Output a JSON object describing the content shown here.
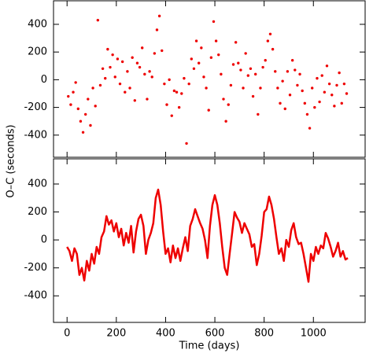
{
  "chart_data": [
    {
      "type": "scatter",
      "color": "#ee0000",
      "ylabel": "O–C (seconds)",
      "xlim": [
        -55,
        1210
      ],
      "ylim": [
        -560,
        570
      ],
      "xticks": [
        0,
        200,
        400,
        600,
        800,
        1000
      ],
      "yticks": [
        -400,
        -200,
        0,
        200,
        400
      ],
      "x": [
        5,
        15,
        25,
        35,
        45,
        55,
        65,
        75,
        85,
        95,
        105,
        115,
        125,
        135,
        145,
        155,
        165,
        175,
        185,
        195,
        205,
        215,
        225,
        235,
        245,
        255,
        265,
        275,
        285,
        295,
        305,
        315,
        325,
        335,
        345,
        355,
        365,
        375,
        385,
        395,
        405,
        415,
        425,
        435,
        445,
        455,
        465,
        475,
        485,
        495,
        505,
        515,
        525,
        535,
        545,
        555,
        565,
        575,
        585,
        595,
        605,
        615,
        625,
        635,
        645,
        655,
        665,
        675,
        685,
        695,
        705,
        715,
        725,
        735,
        745,
        755,
        765,
        775,
        785,
        795,
        805,
        815,
        825,
        835,
        845,
        855,
        865,
        875,
        885,
        895,
        905,
        915,
        925,
        935,
        945,
        955,
        965,
        975,
        985,
        995,
        1005,
        1015,
        1025,
        1035,
        1045,
        1055,
        1065,
        1075,
        1085,
        1095,
        1105,
        1115,
        1125,
        1135
      ],
      "values": [
        -120,
        -180,
        -90,
        -20,
        -210,
        -300,
        -380,
        -250,
        -140,
        -330,
        -60,
        -190,
        430,
        -40,
        80,
        10,
        220,
        90,
        180,
        20,
        150,
        -30,
        130,
        -90,
        60,
        -60,
        160,
        -150,
        120,
        90,
        230,
        40,
        -140,
        60,
        20,
        190,
        360,
        460,
        210,
        -30,
        -180,
        0,
        -260,
        -80,
        -90,
        -200,
        -100,
        10,
        -460,
        -30,
        150,
        80,
        280,
        120,
        230,
        20,
        -60,
        -220,
        160,
        420,
        280,
        180,
        40,
        -140,
        -300,
        -180,
        -40,
        110,
        270,
        120,
        70,
        -60,
        190,
        30,
        80,
        -120,
        40,
        -250,
        -60,
        90,
        140,
        280,
        330,
        220,
        60,
        -60,
        -170,
        -10,
        -210,
        60,
        -110,
        140,
        70,
        -40,
        40,
        -80,
        -170,
        -250,
        -350,
        -60,
        -200,
        10,
        -160,
        30,
        -90,
        100,
        -30,
        -110,
        -190,
        -40,
        50,
        -170,
        -30,
        -100
      ]
    },
    {
      "type": "line",
      "color": "#ee0000",
      "xlabel": "Time (days)",
      "xlim": [
        -55,
        1210
      ],
      "ylim": [
        -590,
        580
      ],
      "xticks": [
        0,
        200,
        400,
        600,
        800,
        1000
      ],
      "yticks": [
        -400,
        -200,
        0,
        200,
        400
      ],
      "x": [
        0,
        10,
        20,
        30,
        40,
        50,
        60,
        70,
        80,
        90,
        100,
        110,
        120,
        130,
        140,
        150,
        160,
        170,
        180,
        190,
        200,
        210,
        220,
        230,
        240,
        250,
        260,
        270,
        280,
        290,
        300,
        310,
        320,
        330,
        340,
        350,
        360,
        370,
        380,
        390,
        400,
        410,
        420,
        430,
        440,
        450,
        460,
        470,
        480,
        490,
        500,
        510,
        520,
        530,
        540,
        550,
        560,
        570,
        580,
        590,
        600,
        610,
        620,
        630,
        640,
        650,
        660,
        670,
        680,
        690,
        700,
        710,
        720,
        730,
        740,
        750,
        760,
        770,
        780,
        790,
        800,
        810,
        820,
        830,
        840,
        850,
        860,
        870,
        880,
        890,
        900,
        910,
        920,
        930,
        940,
        950,
        960,
        970,
        980,
        990,
        1000,
        1010,
        1020,
        1030,
        1040,
        1050,
        1060,
        1070,
        1080,
        1090,
        1100,
        1110,
        1120,
        1130,
        1140
      ],
      "values": [
        -50,
        -80,
        -150,
        -60,
        -100,
        -250,
        -200,
        -290,
        -150,
        -220,
        -100,
        -170,
        -50,
        -100,
        20,
        60,
        170,
        110,
        140,
        60,
        120,
        20,
        80,
        -40,
        50,
        -20,
        100,
        -90,
        60,
        150,
        180,
        100,
        -100,
        0,
        50,
        120,
        300,
        360,
        250,
        60,
        -100,
        -60,
        -160,
        -40,
        -130,
        -60,
        -150,
        -60,
        20,
        -80,
        100,
        150,
        220,
        170,
        120,
        80,
        0,
        -130,
        100,
        250,
        320,
        250,
        120,
        -50,
        -200,
        -250,
        -100,
        50,
        200,
        160,
        130,
        50,
        120,
        80,
        40,
        -50,
        -30,
        -180,
        -100,
        30,
        200,
        220,
        310,
        250,
        150,
        20,
        -100,
        -60,
        -150,
        0,
        -50,
        70,
        120,
        20,
        -30,
        -20,
        -100,
        -200,
        -300,
        -100,
        -150,
        -50,
        -100,
        -40,
        -60,
        50,
        10,
        -50,
        -120,
        -80,
        -20,
        -120,
        -80,
        -140,
        -130
      ]
    }
  ]
}
